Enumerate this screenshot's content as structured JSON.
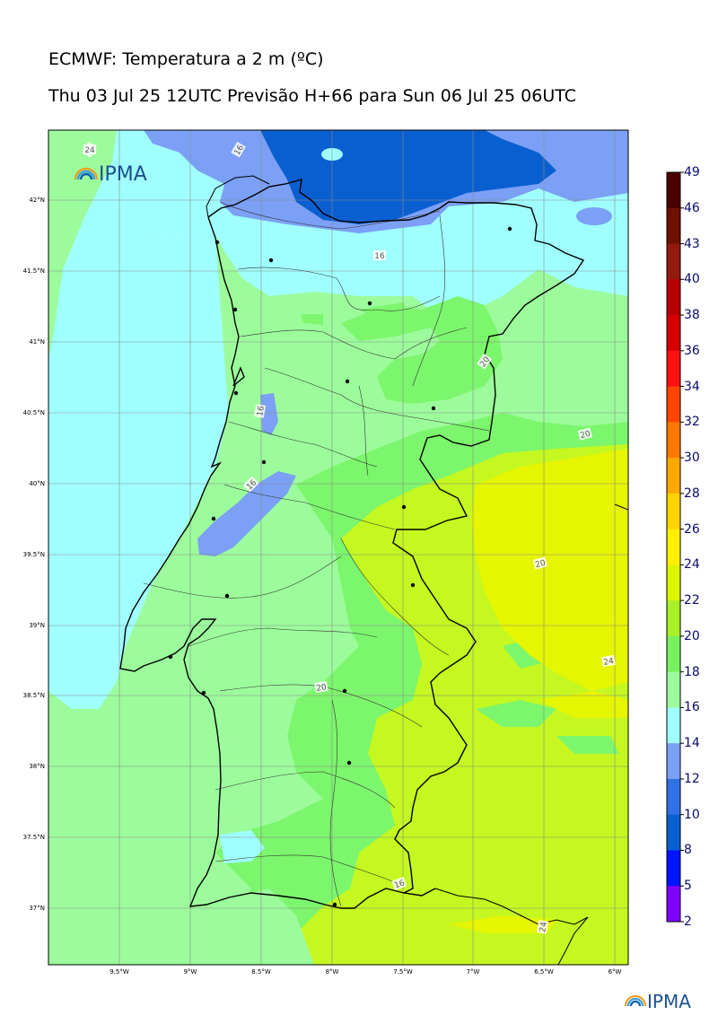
{
  "header": {
    "title": "ECMWF: Temperatura a 2 m (ºC)",
    "subtitle": "Thu 03 Jul 25 12UTC Previsão H+66 para Sun 06 Jul 25 06UTC"
  },
  "logos": {
    "map_logo_text": "IPMA",
    "footer_logo_text": "IPMA"
  },
  "map": {
    "lat_labels": [
      "42°N",
      "41.5°N",
      "41°N",
      "40.5°N",
      "40°N",
      "39.5°N",
      "39°N",
      "38.5°N",
      "38°N",
      "37.5°N",
      "37°N"
    ],
    "lon_labels": [
      "9.5°W",
      "9°W",
      "8.5°W",
      "8°W",
      "7.5°W",
      "7°W",
      "6.5°W",
      "6°W"
    ],
    "contour_labels": [
      "16",
      "16",
      "16",
      "16",
      "16",
      "16",
      "20",
      "20",
      "20",
      "20",
      "24",
      "24",
      "24",
      "24"
    ],
    "field_colors": {
      "t14_16": "#7ba0f5",
      "t12_14": "#2f72e6",
      "t10_12": "#0a5fd0",
      "t16_18": "#a0ffff",
      "t18_20": "#9cfc9c",
      "t20_22": "#7cf66c",
      "t22_24": "#c4f820",
      "t24_26": "#e6f500"
    }
  },
  "colorbar": {
    "labels": [
      "49",
      "46",
      "43",
      "40",
      "38",
      "36",
      "34",
      "32",
      "30",
      "28",
      "26",
      "24",
      "22",
      "20",
      "18",
      "16",
      "14",
      "12",
      "10",
      "8",
      "5",
      "2"
    ],
    "colors": [
      "#4a0000",
      "#6e1000",
      "#921a0e",
      "#b80000",
      "#d40000",
      "#ff1010",
      "#ff4500",
      "#ff7800",
      "#ffa800",
      "#ffd200",
      "#fff000",
      "#dcf500",
      "#a8f028",
      "#78f060",
      "#9cfc9c",
      "#a0ffff",
      "#7ba0f5",
      "#2f72e6",
      "#0a5fd0",
      "#0014ff",
      "#8000ff",
      "#e000ff"
    ]
  }
}
